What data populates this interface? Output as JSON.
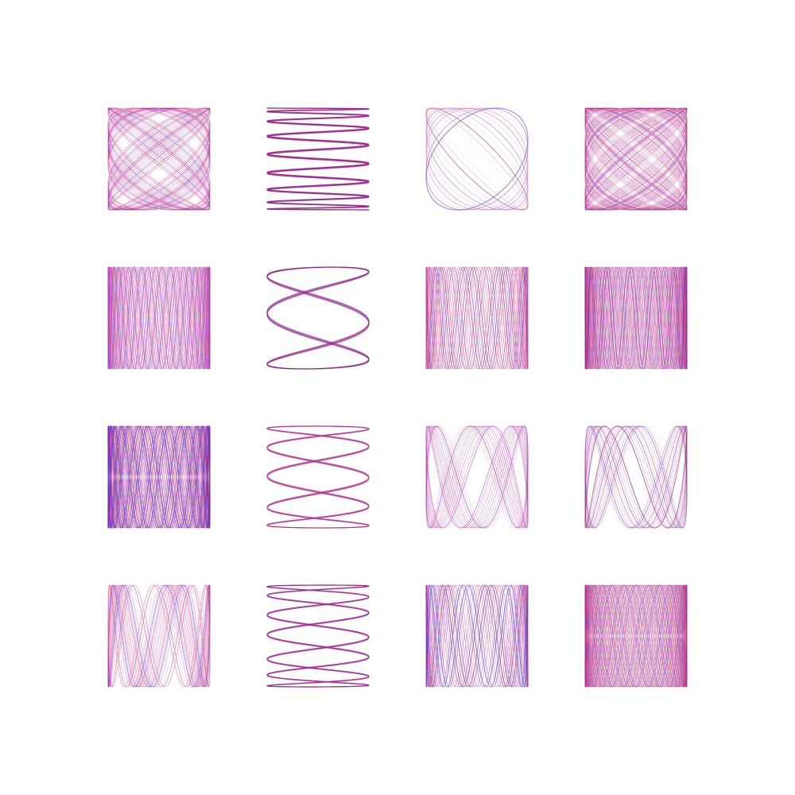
{
  "artwork": {
    "background": "#ffffff",
    "palette": [
      "#7a0a78",
      "#4a2fd6",
      "#e0317a",
      "#b84bd8",
      "#8a1040",
      "#f07ab0"
    ],
    "rows": 4,
    "cols": 4,
    "panels": [
      {
        "a": 5,
        "b": 4,
        "phase": 0.3,
        "drift": 0.06,
        "loops": 3
      },
      {
        "a": 17,
        "b": 1,
        "phase": 0.0,
        "drift": 0.02,
        "loops": 2
      },
      {
        "a": 1,
        "b": 1,
        "phase": 0.2,
        "drift": 0.16,
        "loops": 10
      },
      {
        "a": 6,
        "b": 5,
        "phase": 0.4,
        "drift": 0.05,
        "loops": 3
      },
      {
        "a": 1,
        "b": 11,
        "phase": 0.1,
        "drift": 0.05,
        "loops": 3
      },
      {
        "a": 3,
        "b": 1,
        "phase": 1.2,
        "drift": 0.015,
        "loops": 2
      },
      {
        "a": 1,
        "b": 9,
        "phase": 0.3,
        "drift": 0.05,
        "loops": 3
      },
      {
        "a": 1,
        "b": 13,
        "phase": 0.5,
        "drift": 0.04,
        "loops": 3
      },
      {
        "a": 2,
        "b": 15,
        "phase": 0.2,
        "drift": 0.04,
        "loops": 3
      },
      {
        "a": 5,
        "b": 1,
        "phase": 1.4,
        "drift": 0.015,
        "loops": 2
      },
      {
        "a": 1,
        "b": 3,
        "phase": 0.3,
        "drift": 0.05,
        "loops": 5
      },
      {
        "a": 1,
        "b": 3,
        "phase": 1.4,
        "drift": 0.05,
        "loops": 6
      },
      {
        "a": 1,
        "b": 5,
        "phase": 0.4,
        "drift": 0.06,
        "loops": 4
      },
      {
        "a": 7,
        "b": 1,
        "phase": 1.3,
        "drift": 0.015,
        "loops": 2
      },
      {
        "a": 1,
        "b": 7,
        "phase": 0.3,
        "drift": 0.05,
        "loops": 4
      },
      {
        "a": 2,
        "b": 13,
        "phase": 0.3,
        "drift": 0.04,
        "loops": 3
      }
    ]
  }
}
